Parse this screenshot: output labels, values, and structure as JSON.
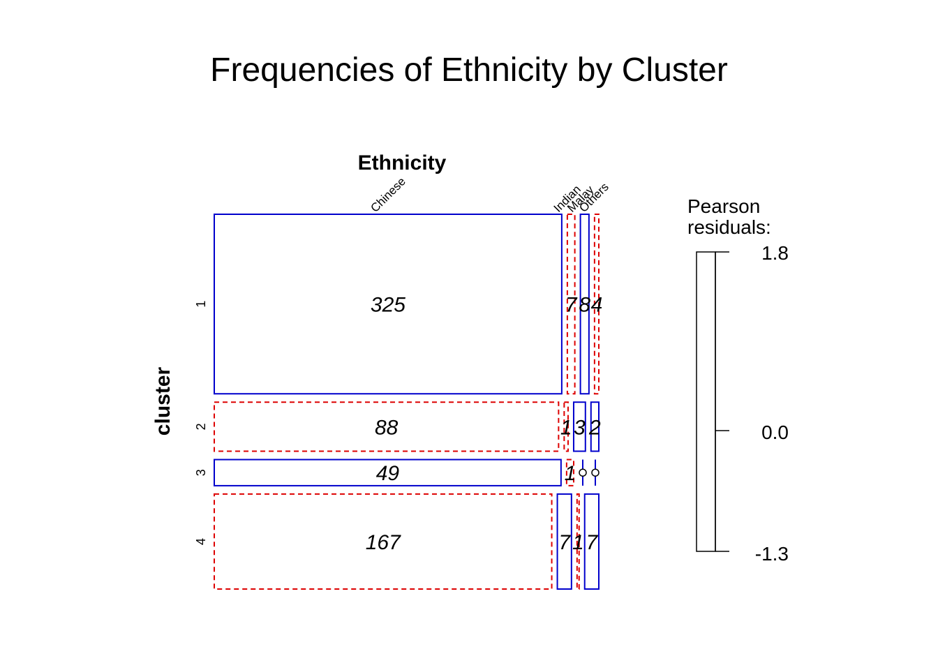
{
  "chart_data": {
    "type": "mosaic",
    "title": "Frequencies of Ethnicity by Cluster",
    "column_variable": "Ethnicity",
    "row_variable": "cluster",
    "columns": [
      "Chinese",
      "Indian",
      "Malay",
      "Others"
    ],
    "rows": [
      "1",
      "2",
      "3",
      "4"
    ],
    "counts": [
      [
        325,
        7,
        8,
        4
      ],
      [
        88,
        1,
        3,
        2
      ],
      [
        49,
        1,
        0,
        0
      ],
      [
        167,
        7,
        1,
        7
      ]
    ],
    "residual_sign": [
      [
        "positive",
        "negative",
        "positive",
        "negative"
      ],
      [
        "negative",
        "negative",
        "positive",
        "positive"
      ],
      [
        "positive",
        "negative",
        "positive",
        "positive"
      ],
      [
        "negative",
        "positive",
        "negative",
        "positive"
      ]
    ],
    "legend": {
      "title_line1": "Pearson",
      "title_line2": "residuals:",
      "max_label": "1.8",
      "mid_label": "0.0",
      "min_label": "-1.3",
      "max": 1.8,
      "min": -1.3
    },
    "colors": {
      "positive": "#0000cc",
      "negative": "#dd0000",
      "text": "#000000"
    }
  }
}
